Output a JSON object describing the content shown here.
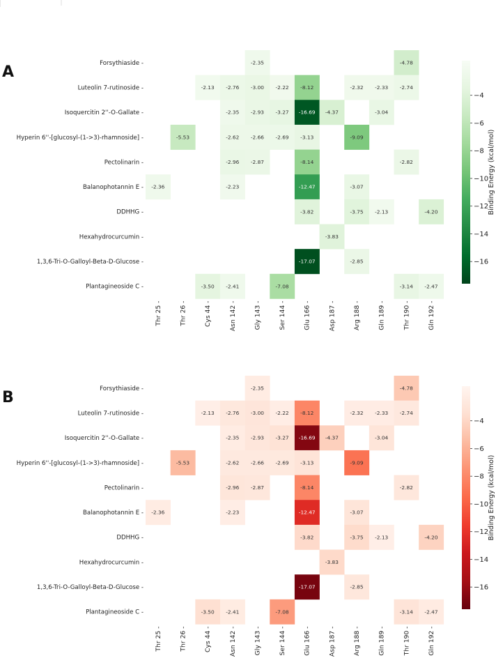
{
  "chart_data": [
    {
      "type": "heatmap",
      "panel_label": "A",
      "colormap": "Greens",
      "colors": [
        "#f7fcf5",
        "#e5f5e0",
        "#c7e9c0",
        "#a1d99b",
        "#74c476",
        "#41ab5d",
        "#238b45",
        "#006d2c",
        "#00441b"
      ],
      "rows": [
        "Forsythiaside",
        "Luteolin 7-rutinoside",
        "Isoquercitin 2''-O-Gallate",
        "Hyperin 6''-[glucosyl-(1->3)-rhamnoside]",
        "Pectolinarin",
        "Balanophotannin E",
        "DDHHG",
        "Hexahydrocurcumin",
        "1,3,6-Tri-O-Galloyl-Beta-D-Glucose",
        "Plantagineoside C"
      ],
      "columns": [
        "Thr 25",
        "Thr 26",
        "Cys 44",
        "Asn 142",
        "Gly 143",
        "Ser 144",
        "Glu 166",
        "Asp 187",
        "Arg 188",
        "Gln 189",
        "Thr 190",
        "Gln 192"
      ],
      "values": [
        [
          null,
          null,
          null,
          null,
          -2.35,
          null,
          null,
          null,
          null,
          null,
          -4.78,
          null
        ],
        [
          null,
          null,
          -2.13,
          -2.76,
          -3.0,
          -2.22,
          -8.12,
          null,
          -2.32,
          -2.33,
          -2.74,
          null
        ],
        [
          null,
          null,
          null,
          -2.35,
          -2.93,
          -3.27,
          -16.69,
          -4.37,
          null,
          -3.04,
          null,
          null
        ],
        [
          null,
          -5.53,
          null,
          -2.62,
          -2.66,
          -2.69,
          -3.13,
          null,
          -9.09,
          null,
          null,
          null
        ],
        [
          null,
          null,
          null,
          -2.96,
          -2.87,
          null,
          -8.14,
          null,
          null,
          null,
          -2.82,
          null
        ],
        [
          -2.36,
          null,
          null,
          -2.23,
          null,
          null,
          -12.47,
          null,
          -3.07,
          null,
          null,
          null
        ],
        [
          null,
          null,
          null,
          null,
          null,
          null,
          -3.82,
          null,
          -3.75,
          -2.13,
          null,
          -4.2
        ],
        [
          null,
          null,
          null,
          null,
          null,
          null,
          null,
          -3.83,
          null,
          null,
          null,
          null
        ],
        [
          null,
          null,
          null,
          null,
          null,
          null,
          -17.07,
          null,
          -2.85,
          null,
          null,
          null
        ],
        [
          null,
          null,
          -3.5,
          -2.41,
          null,
          -7.08,
          null,
          null,
          null,
          null,
          -3.14,
          -2.47
        ]
      ],
      "colorbar": {
        "label": "Binding Energy (kcal/mol)",
        "range": [
          -17.6,
          -1.5
        ],
        "ticks": [
          -4,
          -6,
          -8,
          -10,
          -12,
          -14,
          -16
        ]
      }
    },
    {
      "type": "heatmap",
      "panel_label": "B",
      "colormap": "Reds",
      "colors": [
        "#fff5f0",
        "#fee0d2",
        "#fcbba1",
        "#fc9272",
        "#fb6a4a",
        "#ef3b2c",
        "#cb181d",
        "#a50f15",
        "#67000d"
      ],
      "rows": [
        "Forsythiaside",
        "Luteolin 7-rutinoside",
        "Isoquercitin 2''-O-Gallate",
        "Hyperin 6''-[glucosyl-(1->3)-rhamnoside]",
        "Pectolinarin",
        "Balanophotannin E",
        "DDHHG",
        "Hexahydrocurcumin",
        "1,3,6-Tri-O-Galloyl-Beta-D-Glucose",
        "Plantagineoside C"
      ],
      "columns": [
        "Thr 25",
        "Thr 26",
        "Cys 44",
        "Asn 142",
        "Gly 143",
        "Ser 144",
        "Glu 166",
        "Asp 187",
        "Arg 188",
        "Gln 189",
        "Thr 190",
        "Gln 192"
      ],
      "values": [
        [
          null,
          null,
          null,
          null,
          -2.35,
          null,
          null,
          null,
          null,
          null,
          -4.78,
          null
        ],
        [
          null,
          null,
          -2.13,
          -2.76,
          -3.0,
          -2.22,
          -8.12,
          null,
          -2.32,
          -2.33,
          -2.74,
          null
        ],
        [
          null,
          null,
          null,
          -2.35,
          -2.93,
          -3.27,
          -16.69,
          -4.37,
          null,
          -3.04,
          null,
          null
        ],
        [
          null,
          -5.53,
          null,
          -2.62,
          -2.66,
          -2.69,
          -3.13,
          null,
          -9.09,
          null,
          null,
          null
        ],
        [
          null,
          null,
          null,
          -2.96,
          -2.87,
          null,
          -8.14,
          null,
          null,
          null,
          -2.82,
          null
        ],
        [
          -2.36,
          null,
          null,
          -2.23,
          null,
          null,
          -12.47,
          null,
          -3.07,
          null,
          null,
          null
        ],
        [
          null,
          null,
          null,
          null,
          null,
          null,
          -3.82,
          null,
          -3.75,
          -2.13,
          null,
          -4.2
        ],
        [
          null,
          null,
          null,
          null,
          null,
          null,
          null,
          -3.83,
          null,
          null,
          null,
          null
        ],
        [
          null,
          null,
          null,
          null,
          null,
          null,
          -17.07,
          null,
          -2.85,
          null,
          null,
          null
        ],
        [
          null,
          null,
          -3.5,
          -2.41,
          null,
          -7.08,
          null,
          null,
          null,
          null,
          -3.14,
          -2.47
        ]
      ],
      "colorbar": {
        "label": "Binding Energy (kcal/mol)",
        "range": [
          -17.6,
          -1.5
        ],
        "ticks": [
          -4,
          -6,
          -8,
          -10,
          -12,
          -14,
          -16
        ]
      }
    }
  ]
}
